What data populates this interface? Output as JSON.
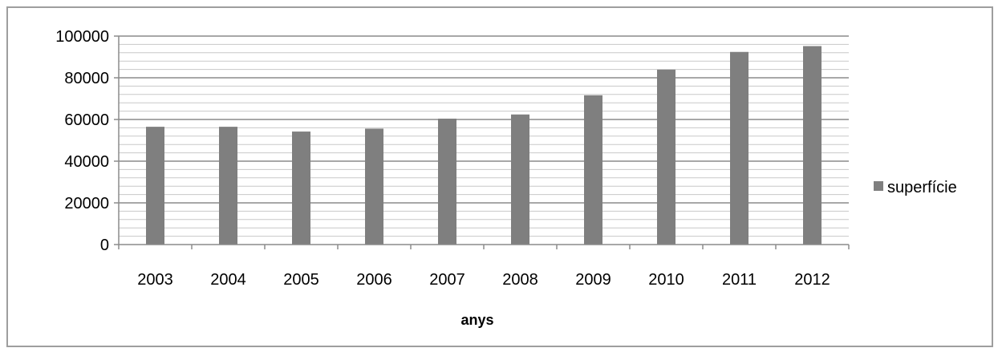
{
  "chart_data": {
    "type": "bar",
    "title": "",
    "xlabel": "anys",
    "ylabel": "",
    "categories": [
      "2003",
      "2004",
      "2005",
      "2006",
      "2007",
      "2008",
      "2009",
      "2010",
      "2011",
      "2012"
    ],
    "series": [
      {
        "name": "superfície",
        "values": [
          56500,
          56500,
          54200,
          55600,
          60400,
          62400,
          71600,
          83900,
          92400,
          95200
        ]
      }
    ],
    "ylim": [
      0,
      100000
    ],
    "yticks": [
      "0",
      "20000",
      "40000",
      "60000",
      "80000",
      "100000"
    ],
    "minor_grid_step": 4000,
    "grid": true,
    "legend_position": "right",
    "colors": {
      "bar": "#7f7f7f",
      "major_grid": "#8c8c8c",
      "minor_grid": "#c8c8c8",
      "axis": "#8c8c8c"
    }
  }
}
